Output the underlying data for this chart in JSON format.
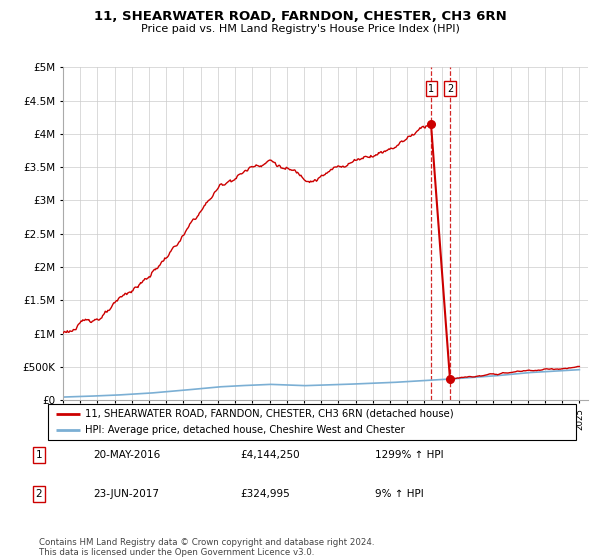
{
  "title": "11, SHEARWATER ROAD, FARNDON, CHESTER, CH3 6RN",
  "subtitle": "Price paid vs. HM Land Registry's House Price Index (HPI)",
  "legend_line1": "11, SHEARWATER ROAD, FARNDON, CHESTER, CH3 6RN (detached house)",
  "legend_line2": "HPI: Average price, detached house, Cheshire West and Chester",
  "sale1_date": "20-MAY-2016",
  "sale1_price": "£4,144,250",
  "sale1_hpi": "1299% ↑ HPI",
  "sale2_date": "23-JUN-2017",
  "sale2_price": "£324,995",
  "sale2_hpi": "9% ↑ HPI",
  "footnote": "Contains HM Land Registry data © Crown copyright and database right 2024.\nThis data is licensed under the Open Government Licence v3.0.",
  "red_color": "#cc0000",
  "blue_color": "#7bafd4",
  "grid_color": "#cccccc",
  "ylim": [
    0,
    5000000
  ],
  "sale1_year": 2016.38,
  "sale2_year": 2017.48,
  "sale1_value_red": 4144250,
  "sale2_value_red": 324995
}
